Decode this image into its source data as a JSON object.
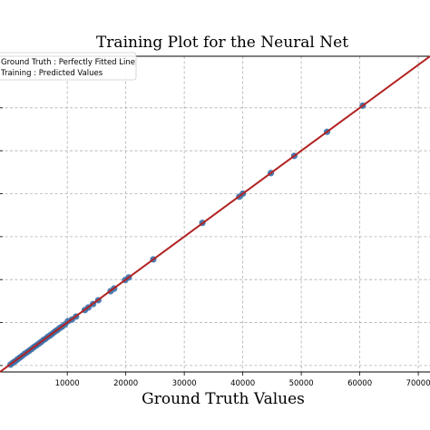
{
  "chart_data": {
    "type": "scatter",
    "title": "Training Plot for the Neural Net",
    "xlabel": "Ground Truth Values",
    "ylabel": "",
    "xlim": [
      -1500,
      72000
    ],
    "ylim": [
      -1500,
      72000
    ],
    "x_ticks": [
      10000,
      20000,
      30000,
      40000,
      50000,
      60000,
      70000
    ],
    "x_tick_labels": [
      "10000",
      "20000",
      "30000",
      "40000",
      "50000",
      "60000",
      "70000"
    ],
    "y_grid_values": [
      0,
      10000,
      20000,
      30000,
      40000,
      50000,
      60000
    ],
    "grid": true,
    "legend_placement": "top-left",
    "colors": {
      "line": "#b22222",
      "points": "#3a6fa8",
      "grid": "#b0b0b0"
    },
    "series": [
      {
        "name": "Ground Truth : Perfectly Fitted Line",
        "kind": "line",
        "x": [
          -1500,
          72000
        ],
        "y": [
          -1500,
          72000
        ]
      },
      {
        "name": "Training : Predicted Values",
        "kind": "scatter",
        "x": [
          300,
          700,
          1100,
          1500,
          1900,
          2300,
          2700,
          3100,
          3500,
          3900,
          4300,
          4700,
          5100,
          5500,
          5900,
          6300,
          6700,
          7100,
          7500,
          7900,
          8300,
          8700,
          9100,
          9600,
          10100,
          10800,
          11500,
          13000,
          13600,
          14400,
          15300,
          17400,
          18000,
          19900,
          20500,
          24700,
          33100,
          39400,
          40000,
          44800,
          48800,
          54400,
          60500
        ],
        "y": [
          200,
          650,
          1000,
          1450,
          1850,
          2250,
          2700,
          3050,
          3450,
          3850,
          4300,
          4650,
          5050,
          5450,
          5900,
          6250,
          6700,
          7050,
          7450,
          7900,
          8250,
          8700,
          9050,
          9550,
          10300,
          10700,
          11400,
          12900,
          13500,
          14300,
          15200,
          17300,
          17900,
          19900,
          20500,
          24700,
          33200,
          39300,
          40000,
          44800,
          48800,
          54400,
          60500
        ]
      }
    ]
  }
}
